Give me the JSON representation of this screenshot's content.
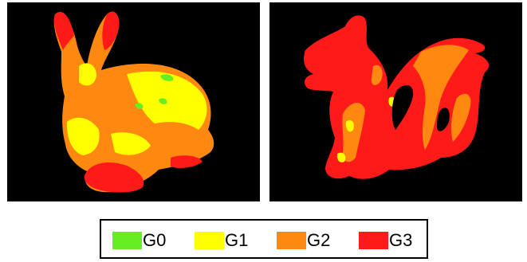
{
  "legend": {
    "items": [
      {
        "label": "G0",
        "color": "#66ee22"
      },
      {
        "label": "G1",
        "color": "#ffff00"
      },
      {
        "label": "G2",
        "color": "#ff8811"
      },
      {
        "label": "G3",
        "color": "#ff1a1a"
      }
    ]
  },
  "panels": [
    {
      "subject": "bunny",
      "icon": "bunny-icon"
    },
    {
      "subject": "dragon",
      "icon": "dragon-icon"
    }
  ]
}
